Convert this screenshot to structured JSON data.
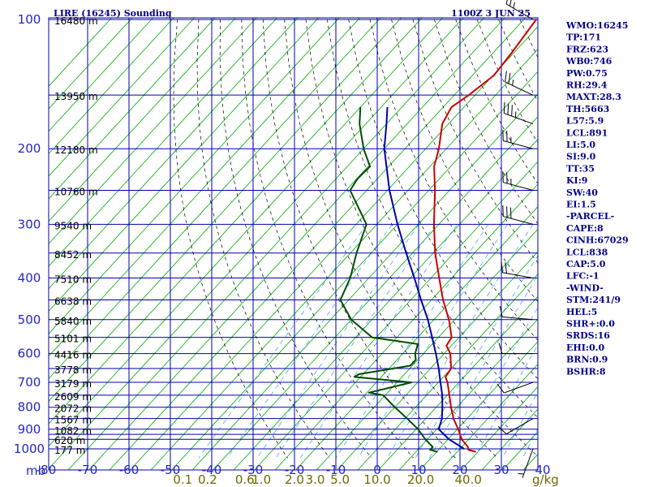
{
  "header": {
    "station": "LIRE (16245) Sounding",
    "time": "1100Z  3 JUN 25"
  },
  "chart_data": {
    "type": "line",
    "title": "LIRE (16245) Sounding",
    "subtitle": "1100Z  3 JUN 25",
    "ylabel": "mb",
    "ylim": [
      1000,
      100
    ],
    "y_scale": "log",
    "xlim": [
      -80,
      40
    ],
    "x_unit": "°C",
    "pressure_ticks": [
      100,
      200,
      300,
      400,
      500,
      600,
      700,
      800,
      900,
      1000
    ],
    "pressure_gridlines": [
      100,
      150,
      200,
      250,
      300,
      350,
      400,
      450,
      500,
      550,
      600,
      650,
      700,
      750,
      800,
      850,
      900,
      925,
      950,
      1000
    ],
    "temperature_ticks": [
      -80,
      -70,
      -60,
      -50,
      -40,
      -30,
      -20,
      -10,
      0,
      10,
      20,
      30,
      40
    ],
    "mixing_ratio_label_unit": "g/kg",
    "mixing_ratio_labels": [
      {
        "label": "0.1",
        "t": -47
      },
      {
        "label": "0.2",
        "t": -41
      },
      {
        "label": "0.6",
        "t": -32
      },
      {
        "label": "1.0",
        "t": -28
      },
      {
        "label": "2.0",
        "t": -20
      },
      {
        "label": "3.0",
        "t": -15
      },
      {
        "label": "5.0",
        "t": -9
      },
      {
        "label": "10.0",
        "t": 0
      },
      {
        "label": "20.0",
        "t": 10.5
      },
      {
        "label": "40.0",
        "t": 22
      }
    ],
    "heights": [
      {
        "p": 100,
        "label": "16480 m"
      },
      {
        "p": 150,
        "label": "13950 m"
      },
      {
        "p": 200,
        "label": "12180 m"
      },
      {
        "p": 250,
        "label": "10760 m"
      },
      {
        "p": 300,
        "label": "9540 m"
      },
      {
        "p": 350,
        "label": "8452 m"
      },
      {
        "p": 400,
        "label": "7510 m"
      },
      {
        "p": 450,
        "label": "6638 m"
      },
      {
        "p": 500,
        "label": "5840 m"
      },
      {
        "p": 550,
        "label": "5101 m"
      },
      {
        "p": 600,
        "label": "4416 m"
      },
      {
        "p": 650,
        "label": "3778 m"
      },
      {
        "p": 700,
        "label": "3179 m"
      },
      {
        "p": 750,
        "label": "2609 m"
      },
      {
        "p": 800,
        "label": "2072 m"
      },
      {
        "p": 850,
        "label": "1567 m"
      },
      {
        "p": 900,
        "label": "1082 m"
      },
      {
        "p": 950,
        "label": "620 m"
      },
      {
        "p": 1000,
        "label": "177 m"
      }
    ],
    "series": [
      {
        "color": "#cc0000",
        "points": [
          {
            "p": 1016,
            "t": 24.5
          },
          {
            "p": 1005,
            "t": 22.2
          },
          {
            "p": 990,
            "t": 21.5
          },
          {
            "p": 950,
            "t": 18.3
          },
          {
            "p": 900,
            "t": 15.2
          },
          {
            "p": 850,
            "t": 11.7
          },
          {
            "p": 800,
            "t": 8.6
          },
          {
            "p": 750,
            "t": 5.5
          },
          {
            "p": 700,
            "t": 2.2
          },
          {
            "p": 680,
            "t": 0.5
          },
          {
            "p": 650,
            "t": 0.0
          },
          {
            "p": 600,
            "t": -3.5
          },
          {
            "p": 575,
            "t": -6.2
          },
          {
            "p": 550,
            "t": -6.8
          },
          {
            "p": 500,
            "t": -11.4
          },
          {
            "p": 450,
            "t": -17.2
          },
          {
            "p": 400,
            "t": -23.0
          },
          {
            "p": 350,
            "t": -29.5
          },
          {
            "p": 300,
            "t": -36.2
          },
          {
            "p": 250,
            "t": -43.5
          },
          {
            "p": 220,
            "t": -49.0
          },
          {
            "p": 200,
            "t": -51.8
          },
          {
            "p": 175,
            "t": -56.5
          },
          {
            "p": 160,
            "t": -58.0
          },
          {
            "p": 150,
            "t": -56.5
          },
          {
            "p": 135,
            "t": -54.8
          },
          {
            "p": 120,
            "t": -55.5
          },
          {
            "p": 100,
            "t": -57.0
          }
        ]
      },
      {
        "color": "#004d00",
        "points": [
          {
            "p": 1016,
            "t": 15.2
          },
          {
            "p": 1005,
            "t": 13.0
          },
          {
            "p": 990,
            "t": 13.0
          },
          {
            "p": 950,
            "t": 9.5
          },
          {
            "p": 900,
            "t": 5.5
          },
          {
            "p": 850,
            "t": 0.5
          },
          {
            "p": 800,
            "t": -5.0
          },
          {
            "p": 750,
            "t": -10.5
          },
          {
            "p": 740,
            "t": -14.5
          },
          {
            "p": 700,
            "t": -6.5
          },
          {
            "p": 680,
            "t": -21.5
          },
          {
            "p": 670,
            "t": -21.0
          },
          {
            "p": 640,
            "t": -10.5
          },
          {
            "p": 620,
            "t": -10.5
          },
          {
            "p": 600,
            "t": -12.0
          },
          {
            "p": 590,
            "t": -12.5
          },
          {
            "p": 570,
            "t": -13.5
          },
          {
            "p": 550,
            "t": -26.0
          },
          {
            "p": 500,
            "t": -35.0
          },
          {
            "p": 450,
            "t": -42.0
          },
          {
            "p": 400,
            "t": -44.5
          },
          {
            "p": 350,
            "t": -48.5
          },
          {
            "p": 300,
            "t": -52.5
          },
          {
            "p": 250,
            "t": -64.0
          },
          {
            "p": 235,
            "t": -64.8
          },
          {
            "p": 220,
            "t": -64.5
          },
          {
            "p": 200,
            "t": -70.0
          },
          {
            "p": 175,
            "t": -76.5
          },
          {
            "p": 160,
            "t": -80.0
          }
        ]
      },
      {
        "color": "#0000aa",
        "points": [
          {
            "p": 1000,
            "t": 21.0
          },
          {
            "p": 950,
            "t": 15.2
          },
          {
            "p": 900,
            "t": 10.5
          },
          {
            "p": 850,
            "t": 8.9
          },
          {
            "p": 800,
            "t": 6.5
          },
          {
            "p": 750,
            "t": 3.8
          },
          {
            "p": 700,
            "t": 0.5
          },
          {
            "p": 650,
            "t": -3.0
          },
          {
            "p": 600,
            "t": -7.0
          },
          {
            "p": 550,
            "t": -11.5
          },
          {
            "p": 500,
            "t": -16.5
          },
          {
            "p": 450,
            "t": -22.5
          },
          {
            "p": 400,
            "t": -29.0
          },
          {
            "p": 350,
            "t": -36.5
          },
          {
            "p": 300,
            "t": -45.0
          },
          {
            "p": 250,
            "t": -54.5
          },
          {
            "p": 200,
            "t": -65.0
          },
          {
            "p": 175,
            "t": -70.0
          },
          {
            "p": 160,
            "t": -73.5
          }
        ]
      }
    ],
    "wind_barbs": [
      {
        "p": 100,
        "dir": 300,
        "spd": 25
      },
      {
        "p": 150,
        "dir": 295,
        "spd": 25
      },
      {
        "p": 175,
        "dir": 290,
        "spd": 35
      },
      {
        "p": 200,
        "dir": 285,
        "spd": 25
      },
      {
        "p": 250,
        "dir": 285,
        "spd": 25
      },
      {
        "p": 300,
        "dir": 285,
        "spd": 30
      },
      {
        "p": 400,
        "dir": 280,
        "spd": 20
      },
      {
        "p": 500,
        "dir": 275,
        "spd": 10
      },
      {
        "p": 600,
        "dir": 270,
        "spd": 10
      },
      {
        "p": 700,
        "dir": 250,
        "spd": 10
      },
      {
        "p": 850,
        "dir": 240,
        "spd": 10
      },
      {
        "p": 1000,
        "dir": 200,
        "spd": 5
      }
    ]
  },
  "indices": [
    "WMO:16245",
    "TP:171",
    "FRZ:623",
    "WB0:746",
    "PW:0.75",
    "RH:29.4",
    "MAXT:28.3",
    "TH:5663",
    "L57:5.9",
    "LCL:891",
    "LI:5.0",
    "SI:9.0",
    "TT:35",
    "KI:9",
    "SW:40",
    "EI:1.5",
    "-PARCEL-",
    "CAPE:8",
    "CINH:67029",
    "LCL:838",
    "CAP:5.0",
    "LFC:-1",
    "-WIND-",
    "STM:241/9",
    "HEL:5",
    "SHR+:0.0",
    "SRDS:16",
    "EHI:0.0",
    "BRN:0.9",
    "BSHR:8"
  ],
  "colors": {
    "grid": "#0000aa",
    "isotherm": "#00aa00",
    "dry_adiabat": "#000000",
    "mixing_ratio": "#3399ff",
    "text": "#00008b"
  }
}
